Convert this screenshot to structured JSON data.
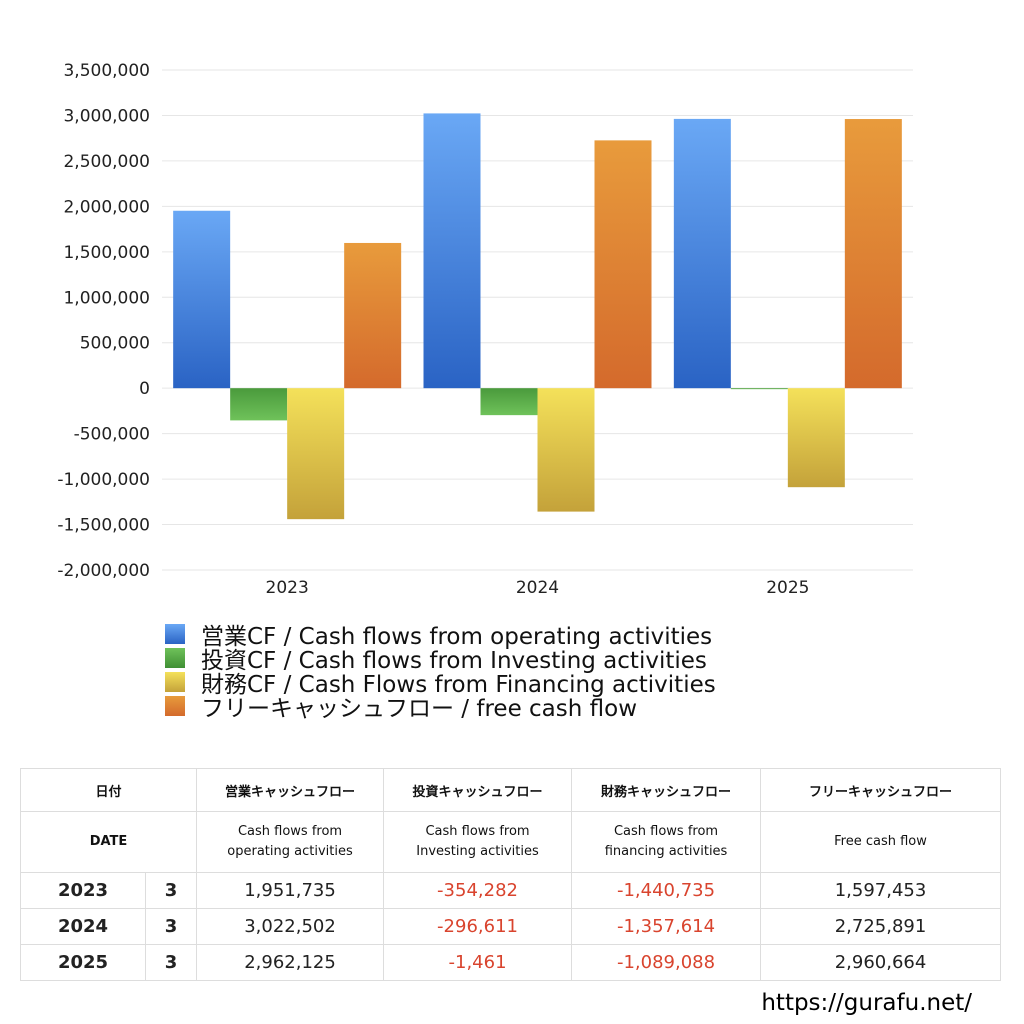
{
  "chart_data": {
    "type": "bar",
    "categories": [
      "2023",
      "2024",
      "2025"
    ],
    "series": [
      {
        "name": "営業CF / Cash flows from operating activities",
        "values": [
          1951735,
          3022502,
          2962125
        ],
        "color_top": "#6aa8f5",
        "color_bottom": "#2a63c4"
      },
      {
        "name": "投資CF / Cash flows from Investing activities",
        "values": [
          -354282,
          -296611,
          -1461
        ],
        "color_top": "#4a9a3c",
        "color_bottom": "#6fc25a"
      },
      {
        "name": "財務CF / Cash Flows from Financing activities",
        "values": [
          -1440735,
          -1357614,
          -1089088
        ],
        "color_top": "#f4e15a",
        "color_bottom": "#c4a23a"
      },
      {
        "name": "フリーキャッシュフロー / free cash flow",
        "values": [
          1597453,
          2725891,
          2960664
        ],
        "color_top": "#e89b3c",
        "color_bottom": "#d46a2c"
      }
    ],
    "ylim": [
      -2000000,
      3500000
    ],
    "yticks": [
      3500000,
      3000000,
      2500000,
      2000000,
      1500000,
      1000000,
      500000,
      0,
      -500000,
      -1000000,
      -1500000,
      -2000000
    ],
    "ytick_labels": [
      "3,500,000",
      "3,000,000",
      "2,500,000",
      "2,000,000",
      "1,500,000",
      "1,000,000",
      "500,000",
      "0",
      "-500,000",
      "-1,000,000",
      "-1,500,000",
      "-2,000,000"
    ],
    "grid": true,
    "legend_position": "bottom-left"
  },
  "legend": [
    {
      "label": "営業CF / Cash flows from operating activities",
      "color": "#4a86e0"
    },
    {
      "label": "投資CF / Cash flows from Investing activities",
      "color": "#58ad48"
    },
    {
      "label": "財務CF / Cash Flows from Financing activities",
      "color": "#e2c64a"
    },
    {
      "label": "フリーキャッシュフロー / free cash flow",
      "color": "#e0803a"
    }
  ],
  "table": {
    "header_jp": {
      "date": "日付",
      "operating": "営業キャッシュフロー",
      "investing": "投資キャッシュフロー",
      "financing": "財務キャッシュフロー",
      "free": "フリーキャッシュフロー"
    },
    "header_en": {
      "date": "DATE",
      "operating_1": "Cash flows from",
      "operating_2": "operating activities",
      "investing_1": "Cash flows from",
      "investing_2": "Investing activities",
      "financing_1": "Cash flows from",
      "financing_2": "financing activities",
      "free": "Free cash flow"
    },
    "rows": [
      {
        "year": "2023",
        "month": "3",
        "operating": "1,951,735",
        "investing": "-354,282",
        "financing": "-1,440,735",
        "free": "1,597,453"
      },
      {
        "year": "2024",
        "month": "3",
        "operating": "3,022,502",
        "investing": "-296,611",
        "financing": "-1,357,614",
        "free": "2,725,891"
      },
      {
        "year": "2025",
        "month": "3",
        "operating": "2,962,125",
        "investing": "-1,461",
        "financing": "-1,089,088",
        "free": "2,960,664"
      }
    ]
  },
  "footer": {
    "url": "https://gurafu.net/"
  }
}
